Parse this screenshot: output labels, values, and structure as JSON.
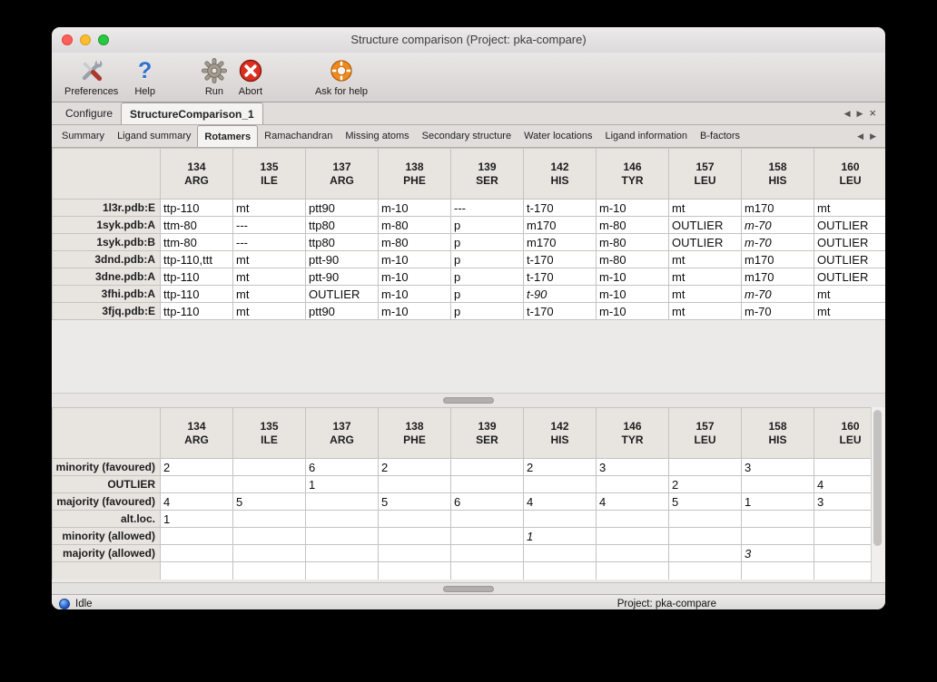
{
  "window": {
    "title": "Structure comparison (Project: pka-compare)"
  },
  "toolbar": {
    "items": [
      {
        "id": "preferences",
        "label": "Preferences",
        "icon": "preferences-icon"
      },
      {
        "id": "help",
        "label": "Help",
        "icon": "help-icon"
      },
      {
        "id": "run",
        "label": "Run",
        "icon": "run-gear-icon"
      },
      {
        "id": "abort",
        "label": "Abort",
        "icon": "abort-icon"
      },
      {
        "id": "ask-for-help",
        "label": "Ask for help",
        "icon": "lifebuoy-icon"
      }
    ]
  },
  "document_tabs": [
    {
      "label": "Configure",
      "active": false
    },
    {
      "label": "StructureComparison_1",
      "active": true
    }
  ],
  "view_tabs": [
    {
      "label": "Summary",
      "active": false
    },
    {
      "label": "Ligand summary",
      "active": false
    },
    {
      "label": "Rotamers",
      "active": true
    },
    {
      "label": "Ramachandran",
      "active": false
    },
    {
      "label": "Missing atoms",
      "active": false
    },
    {
      "label": "Secondary structure",
      "active": false
    },
    {
      "label": "Water locations",
      "active": false
    },
    {
      "label": "Ligand information",
      "active": false
    },
    {
      "label": "B-factors",
      "active": false
    }
  ],
  "tab_controls": {
    "prev": "◀",
    "next": "▶",
    "close": "×"
  },
  "columns": [
    {
      "num": "134",
      "res": "ARG"
    },
    {
      "num": "135",
      "res": "ILE"
    },
    {
      "num": "137",
      "res": "ARG"
    },
    {
      "num": "138",
      "res": "PHE"
    },
    {
      "num": "139",
      "res": "SER"
    },
    {
      "num": "142",
      "res": "HIS"
    },
    {
      "num": "146",
      "res": "TYR"
    },
    {
      "num": "157",
      "res": "LEU"
    },
    {
      "num": "158",
      "res": "HIS"
    },
    {
      "num": "160",
      "res": "LEU"
    }
  ],
  "upper_table": {
    "rows": [
      {
        "header": "1l3r.pdb:E",
        "cells": [
          [
            "ttp-110",
            "green"
          ],
          [
            "mt",
            "green"
          ],
          [
            "ptt90",
            "orange"
          ],
          [
            "m-10",
            "green"
          ],
          [
            "---",
            "gray"
          ],
          [
            "t-170",
            "green"
          ],
          [
            "m-10",
            "green"
          ],
          [
            "mt",
            "green"
          ],
          [
            "m170",
            "orange"
          ],
          [
            "mt",
            "green"
          ]
        ]
      },
      {
        "header": "1syk.pdb:A",
        "cells": [
          [
            "ttm-80",
            "orange"
          ],
          [
            "---",
            "gray"
          ],
          [
            "ttp80",
            "orange"
          ],
          [
            "m-80",
            "orange"
          ],
          [
            "p",
            "green"
          ],
          [
            "m170",
            "orange"
          ],
          [
            "m-80",
            "orange"
          ],
          [
            "OUTLIER",
            "red"
          ],
          [
            "m-70",
            "orange",
            "i"
          ],
          [
            "OUTLIER",
            "red"
          ]
        ]
      },
      {
        "header": "1syk.pdb:B",
        "cells": [
          [
            "ttm-80",
            "orange"
          ],
          [
            "---",
            "gray"
          ],
          [
            "ttp80",
            "orange"
          ],
          [
            "m-80",
            "orange"
          ],
          [
            "p",
            "green"
          ],
          [
            "m170",
            "orange"
          ],
          [
            "m-80",
            "orange"
          ],
          [
            "OUTLIER",
            "red"
          ],
          [
            "m-70",
            "orange",
            "i"
          ],
          [
            "OUTLIER",
            "red"
          ]
        ]
      },
      {
        "header": "3dnd.pdb:A",
        "cells": [
          [
            "ttp-110,ttt",
            "blue"
          ],
          [
            "mt",
            "green"
          ],
          [
            "ptt-90",
            "orange"
          ],
          [
            "m-10",
            "green"
          ],
          [
            "p",
            "green"
          ],
          [
            "t-170",
            "green"
          ],
          [
            "m-80",
            "orange"
          ],
          [
            "mt",
            "green"
          ],
          [
            "m170",
            "orange"
          ],
          [
            "OUTLIER",
            "red"
          ]
        ]
      },
      {
        "header": "3dne.pdb:A",
        "cells": [
          [
            "ttp-110",
            "green"
          ],
          [
            "mt",
            "green"
          ],
          [
            "ptt-90",
            "orange"
          ],
          [
            "m-10",
            "green"
          ],
          [
            "p",
            "green"
          ],
          [
            "t-170",
            "green"
          ],
          [
            "m-10",
            "green"
          ],
          [
            "mt",
            "green"
          ],
          [
            "m170",
            "orange"
          ],
          [
            "OUTLIER",
            "red"
          ]
        ]
      },
      {
        "header": "3fhi.pdb:A",
        "cells": [
          [
            "ttp-110",
            "green"
          ],
          [
            "mt",
            "green"
          ],
          [
            "OUTLIER",
            "red"
          ],
          [
            "m-10",
            "green"
          ],
          [
            "p",
            "green"
          ],
          [
            "t-90",
            "orange",
            "i"
          ],
          [
            "m-10",
            "green"
          ],
          [
            "mt",
            "green"
          ],
          [
            "m-70",
            "green",
            "i"
          ],
          [
            "mt",
            "green"
          ]
        ]
      },
      {
        "header": "3fjq.pdb:E",
        "cells": [
          [
            "ttp-110",
            "green"
          ],
          [
            "mt",
            "green"
          ],
          [
            "ptt90",
            "orange"
          ],
          [
            "m-10",
            "green"
          ],
          [
            "p",
            "green"
          ],
          [
            "t-170",
            "green"
          ],
          [
            "m-10",
            "green"
          ],
          [
            "mt",
            "green"
          ],
          [
            "m-70",
            "green"
          ],
          [
            "mt",
            "green"
          ]
        ]
      }
    ]
  },
  "lower_table": {
    "rows": [
      {
        "header": "minority (favoured)",
        "cells": [
          [
            "2",
            "orange"
          ],
          [
            "",
            ""
          ],
          [
            "6",
            "orange"
          ],
          [
            "2",
            "orange"
          ],
          [
            "",
            ""
          ],
          [
            "2",
            "orange"
          ],
          [
            "3",
            "orange"
          ],
          [
            "",
            ""
          ],
          [
            "3",
            "orange"
          ],
          [
            "",
            ""
          ]
        ]
      },
      {
        "header": "OUTLIER",
        "cells": [
          [
            "",
            ""
          ],
          [
            "",
            ""
          ],
          [
            "1",
            "red"
          ],
          [
            "",
            ""
          ],
          [
            "",
            ""
          ],
          [
            "",
            ""
          ],
          [
            "",
            ""
          ],
          [
            "2",
            "red"
          ],
          [
            "",
            ""
          ],
          [
            "4",
            "red"
          ]
        ]
      },
      {
        "header": "majority (favoured)",
        "cells": [
          [
            "4",
            "green"
          ],
          [
            "5",
            "green"
          ],
          [
            "",
            ""
          ],
          [
            "5",
            "green"
          ],
          [
            "6",
            "green"
          ],
          [
            "4",
            "green"
          ],
          [
            "4",
            "green"
          ],
          [
            "5",
            "green"
          ],
          [
            "1",
            "green"
          ],
          [
            "3",
            "green"
          ]
        ]
      },
      {
        "header": "alt.loc.",
        "cells": [
          [
            "1",
            "blue"
          ],
          [
            "",
            ""
          ],
          [
            "",
            ""
          ],
          [
            "",
            ""
          ],
          [
            "",
            ""
          ],
          [
            "",
            ""
          ],
          [
            "",
            ""
          ],
          [
            "",
            ""
          ],
          [
            "",
            ""
          ],
          [
            "",
            ""
          ]
        ]
      },
      {
        "header": "minority (allowed)",
        "cells": [
          [
            "",
            ""
          ],
          [
            "",
            ""
          ],
          [
            "",
            ""
          ],
          [
            "",
            ""
          ],
          [
            "",
            ""
          ],
          [
            "1",
            "orange",
            "i"
          ],
          [
            "",
            ""
          ],
          [
            "",
            ""
          ],
          [
            "",
            ""
          ],
          [
            "",
            ""
          ]
        ]
      },
      {
        "header": "majority (allowed)",
        "cells": [
          [
            "",
            ""
          ],
          [
            "",
            ""
          ],
          [
            "",
            ""
          ],
          [
            "",
            ""
          ],
          [
            "",
            ""
          ],
          [
            "",
            ""
          ],
          [
            "",
            ""
          ],
          [
            "",
            ""
          ],
          [
            "3",
            "green",
            "i"
          ],
          [
            "",
            ""
          ]
        ]
      }
    ],
    "partial_row": [
      "",
      "gray",
      "",
      "",
      "gray",
      "",
      "",
      "",
      "",
      ""
    ]
  },
  "status_bar": {
    "status": "Idle",
    "project": "Project: pka-compare"
  },
  "colors": {
    "favoured_green": "#3fd24d",
    "minority_orange": "#d5994a",
    "outlier_red": "#f23b1e",
    "missing_gray": "#b3b3b3",
    "alt_loc_blue": "#3c57a8"
  }
}
